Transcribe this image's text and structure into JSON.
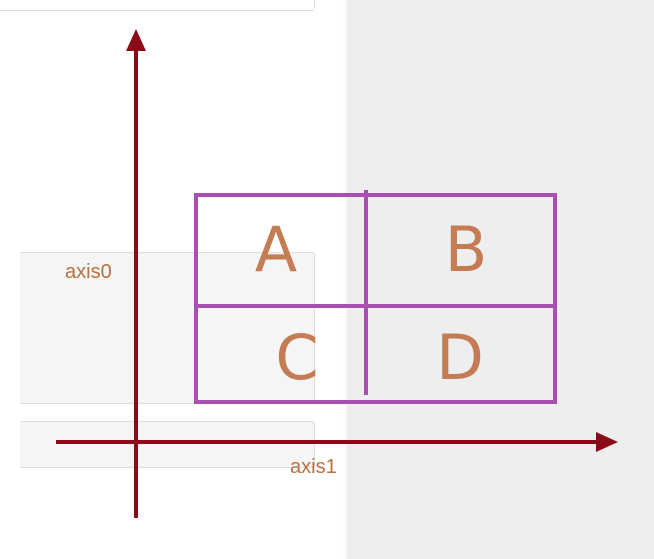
{
  "diagram": {
    "axis0_label": "axis0",
    "axis1_label": "axis1",
    "cells": {
      "a": "A",
      "b": "B",
      "c": "C",
      "d": "D"
    },
    "colors": {
      "axis": "#8b0a1a",
      "grid": "#a84fb0",
      "letters": "#c37c54",
      "axis_labels": "#b9703e",
      "panel_background": "#efeeef"
    }
  }
}
